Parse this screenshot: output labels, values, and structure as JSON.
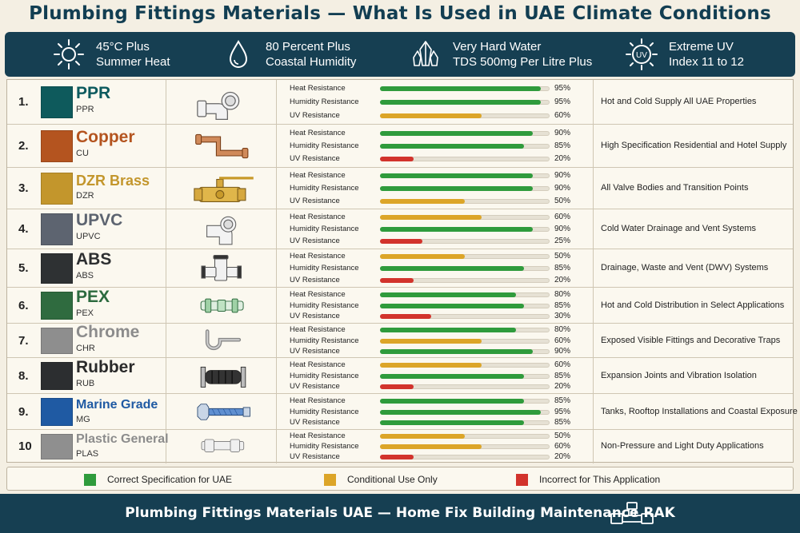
{
  "title": "Plumbing Fittings Materials — What Is Used in UAE Climate Conditions",
  "conditions": [
    {
      "icon": "sun-icon",
      "line1": "45°C Plus",
      "line2": "Summer Heat"
    },
    {
      "icon": "water-drop-icon",
      "line1": "80 Percent Plus",
      "line2": "Coastal Humidity"
    },
    {
      "icon": "crystal-icon",
      "line1": "Very Hard Water",
      "line2": "TDS 500mg Per Litre Plus"
    },
    {
      "icon": "uv-sun-icon",
      "line1": "Extreme UV",
      "line2": "Index 11 to 12",
      "badge": "UV"
    }
  ],
  "colors": {
    "good": "#2f9b3c",
    "conditional": "#dca528",
    "bad": "#d2332c"
  },
  "chart_data": {
    "type": "bar",
    "metrics": [
      "Heat Resistance",
      "Humidity Resistance",
      "UV Resistance"
    ],
    "xlim": [
      0,
      100
    ],
    "rows": [
      {
        "num": "1.",
        "name": "PPR",
        "code": "PPR",
        "name_color": "#0c5a5e",
        "swatch": "#0e5a5c",
        "icon": "elbow-fitting-icon",
        "values": [
          95,
          95,
          60
        ],
        "ratings": [
          "good",
          "good",
          "conditional"
        ],
        "use": "Hot and Cold Supply All UAE Properties"
      },
      {
        "num": "2.",
        "name": "Copper",
        "code": "CU",
        "name_color": "#b4541f",
        "swatch": "#b4541f",
        "icon": "copper-pipe-icon",
        "values": [
          90,
          85,
          20
        ],
        "ratings": [
          "good",
          "good",
          "bad"
        ],
        "use": "High Specification Residential and Hotel Supply"
      },
      {
        "num": "3.",
        "name": "DZR Brass",
        "code": "DZR",
        "name_color": "#c3962c",
        "swatch": "#c3962c",
        "icon": "ball-valve-icon",
        "values": [
          90,
          90,
          50
        ],
        "ratings": [
          "good",
          "good",
          "conditional"
        ],
        "use": "All Valve Bodies and Transition Points"
      },
      {
        "num": "4.",
        "name": "UPVC",
        "code": "UPVC",
        "name_color": "#5d6470",
        "swatch": "#5d6470",
        "icon": "upvc-elbow-icon",
        "values": [
          60,
          90,
          25
        ],
        "ratings": [
          "conditional",
          "good",
          "bad"
        ],
        "use": "Cold Water Drainage and Vent Systems"
      },
      {
        "num": "5.",
        "name": "ABS",
        "code": "ABS",
        "name_color": "#2d2f31",
        "swatch": "#2e3133",
        "icon": "tee-fitting-icon",
        "values": [
          50,
          85,
          20
        ],
        "ratings": [
          "conditional",
          "good",
          "bad"
        ],
        "use": "Drainage, Waste and Vent (DWV) Systems"
      },
      {
        "num": "6.",
        "name": "PEX",
        "code": "PEX",
        "name_color": "#2c6a3e",
        "swatch": "#2f6b3f",
        "icon": "pex-coupling-icon",
        "values": [
          80,
          85,
          30
        ],
        "ratings": [
          "good",
          "good",
          "bad"
        ],
        "use": "Hot and Cold Distribution in Select Applications"
      },
      {
        "num": "7.",
        "name": "Chrome",
        "code": "CHR",
        "name_color": "#8c8c8c",
        "swatch": "#8e8e8e",
        "icon": "p-trap-icon",
        "values": [
          80,
          60,
          90
        ],
        "ratings": [
          "good",
          "conditional",
          "good"
        ],
        "use": "Exposed Visible Fittings and Decorative Traps"
      },
      {
        "num": "8.",
        "name": "Rubber",
        "code": "RUB",
        "name_color": "#2a2a2a",
        "swatch": "#2c2e30",
        "icon": "expansion-joint-icon",
        "values": [
          60,
          85,
          20
        ],
        "ratings": [
          "conditional",
          "good",
          "bad"
        ],
        "use": "Expansion Joints and Vibration Isolation"
      },
      {
        "num": "9.",
        "name": "Marine Grade",
        "code": "MG",
        "name_color": "#1f5aa3",
        "swatch": "#1f5aa3",
        "icon": "braided-hose-icon",
        "values": [
          85,
          95,
          85
        ],
        "ratings": [
          "good",
          "good",
          "good"
        ],
        "use": "Tanks, Rooftop Installations and Coastal Exposure"
      },
      {
        "num": "10",
        "name": "Plastic General",
        "code": "PLAS",
        "name_color": "#8c8c8c",
        "swatch": "#8f8f8f",
        "icon": "plastic-coupling-icon",
        "values": [
          50,
          60,
          20
        ],
        "ratings": [
          "conditional",
          "conditional",
          "bad"
        ],
        "use": "Non-Pressure and Light Duty Applications"
      }
    ]
  },
  "legend": [
    {
      "rating": "good",
      "label": "Correct Specification for UAE"
    },
    {
      "rating": "conditional",
      "label": "Conditional Use Only"
    },
    {
      "rating": "bad",
      "label": "Incorrect for This Application"
    }
  ],
  "footer": {
    "text": "Plumbing Fittings Materials UAE — Home Fix Building Maintenance RAK",
    "icon": "pipe-fitting-icon"
  }
}
